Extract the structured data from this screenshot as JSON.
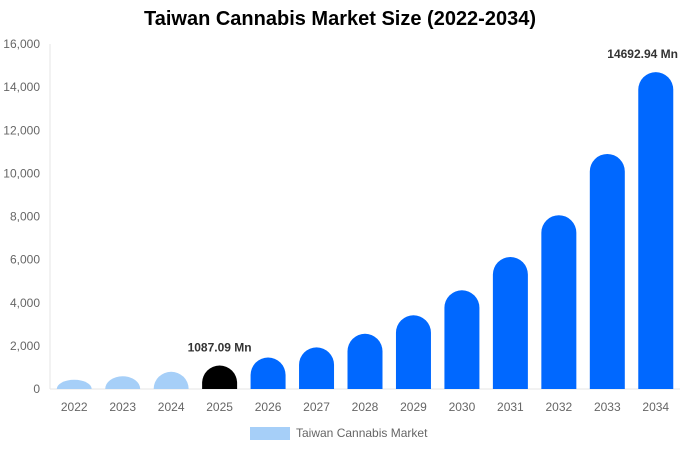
{
  "chart_data": {
    "type": "bar",
    "title": "Taiwan Cannabis Market Size (2022-2034)",
    "categories": [
      "2022",
      "2023",
      "2024",
      "2025",
      "2026",
      "2027",
      "2028",
      "2029",
      "2030",
      "2031",
      "2032",
      "2033",
      "2034"
    ],
    "series": [
      {
        "name": "Taiwan Cannabis Market",
        "values": [
          430,
          590,
          800,
          1087.09,
          1460,
          1930,
          2560,
          3420,
          4580,
          6120,
          8060,
          10900,
          14692.94
        ]
      }
    ],
    "ylim": [
      0,
      16000
    ],
    "yticks": [
      "0",
      "2,000",
      "4,000",
      "6,000",
      "8,000",
      "10,000",
      "12,000",
      "14,000",
      "16,000"
    ],
    "data_labels": [
      {
        "category": "2025",
        "text": "1087.09 Mn"
      },
      {
        "category": "2034",
        "text": "14692.94 Mn"
      }
    ],
    "bar_colors": {
      "historical": "#a6cff8",
      "base_year": "#000000",
      "forecast": "#0068ff"
    },
    "base_year_index": 3,
    "grid": false,
    "legend_position": "bottom"
  }
}
